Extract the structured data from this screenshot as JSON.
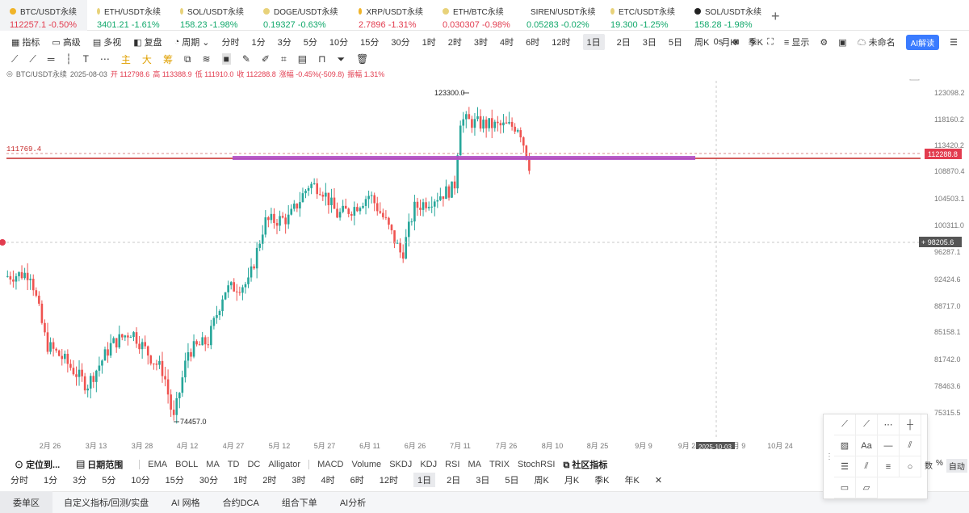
{
  "tickers": [
    {
      "name": "BTC/USDT永续",
      "price": "112257.1",
      "change": "-0.50%",
      "dir": "down",
      "dot": "#f0b429"
    },
    {
      "name": "ETH/USDT永续",
      "price": "3401.21",
      "change": "-1.61%",
      "dir": "up",
      "dot": "#e8d27a"
    },
    {
      "name": "SOL/USDT永续",
      "price": "158.23",
      "change": "-1.98%",
      "dir": "up",
      "dot": "#e8d27a"
    },
    {
      "name": "DOGE/USDT永续",
      "price": "0.19327",
      "change": "-0.63%",
      "dir": "up",
      "dot": "#e8d27a"
    },
    {
      "name": "XRP/USDT永续",
      "price": "2.7896",
      "change": "-1.31%",
      "dir": "down",
      "dot": "#f0b429"
    },
    {
      "name": "ETH/BTC永续",
      "price": "0.030307",
      "change": "-0.98%",
      "dir": "down",
      "dot": "#e8d27a"
    },
    {
      "name": "SIREN/USDT永续",
      "price": "0.05283",
      "change": "-0.02%",
      "dir": "up",
      "dot": "#e8d27a"
    },
    {
      "name": "ETC/USDT永续",
      "price": "19.300",
      "change": "-1.25%",
      "dir": "up",
      "dot": "#e8d27a"
    },
    {
      "name": "SOL/USDT永续",
      "price": "158.28",
      "change": "-1.98%",
      "dir": "up",
      "dot": "#222222"
    }
  ],
  "toolbar": {
    "items": [
      "指标",
      "高级",
      "多视",
      "复盘",
      "周期",
      "分时",
      "1分",
      "3分",
      "5分",
      "10分",
      "15分",
      "30分",
      "1时",
      "2时",
      "3时",
      "4时",
      "6时",
      "12时",
      "1日",
      "2日",
      "3日",
      "5日",
      "周K",
      "月K",
      "季K"
    ],
    "selected": "1日",
    "right_zero": "0s",
    "show": "显示",
    "unnamed": "未命名",
    "ai": "AI解读"
  },
  "draw_labels": [
    "主",
    "大",
    "筹"
  ],
  "info": {
    "symbol": "BTC/USDT永续",
    "date": "2025-08-03",
    "open": "开 112798.6",
    "high": "高 113388.9",
    "low": "低 111910.0",
    "close": "收 112288.8",
    "change": "涨幅 -0.45%(-509.8)",
    "amp": "振幅 1.31%"
  },
  "chart_data": {
    "type": "candlestick",
    "y_ticks": [
      "123098.2",
      "118160.2",
      "113420.2",
      "108870.4",
      "104503.1",
      "100311.0",
      "96287.1",
      "92424.6",
      "88717.0",
      "85158.1",
      "81742.0",
      "78463.6",
      "75315.5"
    ],
    "x_ticks": [
      "2月 26",
      "3月 13",
      "3月 28",
      "4月 12",
      "4月 27",
      "5月 12",
      "5月 27",
      "6月 11",
      "6月 26",
      "7月 11",
      "7月 26",
      "8月 10",
      "8月 25",
      "9月 9",
      "9月 24",
      "10月 9",
      "10月 24"
    ],
    "crosshair_date": "2025-10-03",
    "high_marker": "123300.0",
    "low_marker": "74457.0",
    "horizontal_line_label": "111769.4",
    "last_price": "112288.8",
    "cursor_price": "98205.6",
    "colors": {
      "up": "#26a69a",
      "down": "#ef5350",
      "zone": "#b04fc6",
      "line": "#c62828"
    }
  },
  "indicators": {
    "locate": "定位到...",
    "date_range": "日期范围",
    "main": [
      "EMA",
      "BOLL",
      "MA",
      "TD",
      "DC",
      "Alligator"
    ],
    "sub": [
      "MACD",
      "Volume",
      "SKDJ",
      "KDJ",
      "RSI",
      "MA",
      "TRIX",
      "StochRSI"
    ],
    "community": "社区指标"
  },
  "timeframes": [
    "分时",
    "1分",
    "3分",
    "5分",
    "10分",
    "15分",
    "30分",
    "1时",
    "2时",
    "3时",
    "4时",
    "6时",
    "12时",
    "1日",
    "2日",
    "3日",
    "5日",
    "周K",
    "月K",
    "季K",
    "年K"
  ],
  "selected_tf": "1日",
  "bottom_tabs": [
    "委单区",
    "自定义指标/回测/实盘",
    "AI 网格",
    "合约DCA",
    "组合下单",
    "AI分析"
  ],
  "panel_text": "Aa",
  "side": {
    "pct": "%",
    "auto": "自动",
    "num": "数"
  }
}
